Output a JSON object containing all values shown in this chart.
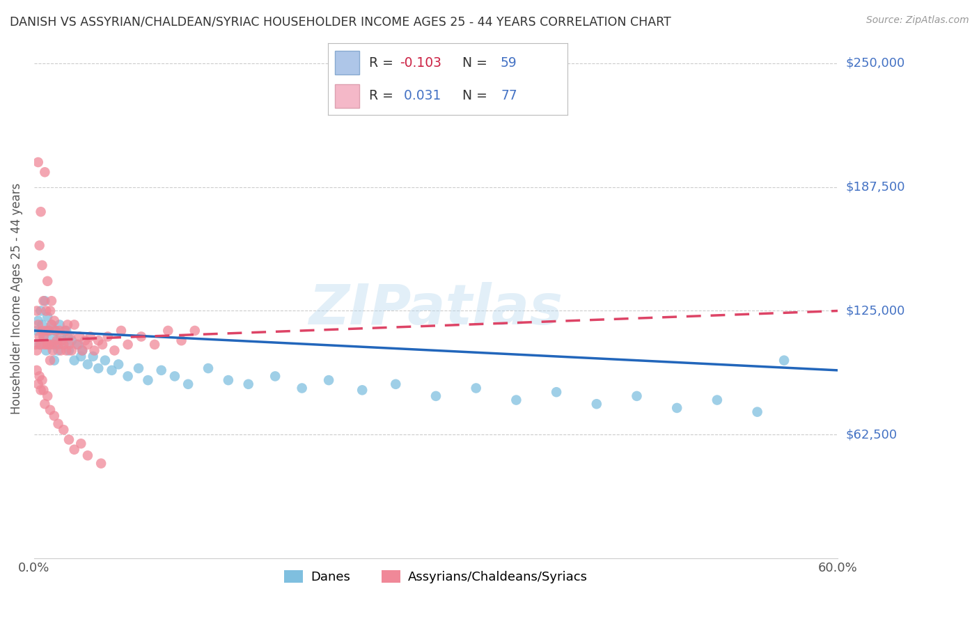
{
  "title": "DANISH VS ASSYRIAN/CHALDEAN/SYRIAC HOUSEHOLDER INCOME AGES 25 - 44 YEARS CORRELATION CHART",
  "source": "Source: ZipAtlas.com",
  "ylabel": "Householder Income Ages 25 - 44 years",
  "x_min": 0.0,
  "x_max": 0.6,
  "y_min": 0,
  "y_max": 262500,
  "y_ticks": [
    62500,
    125000,
    187500,
    250000
  ],
  "y_tick_labels": [
    "$62,500",
    "$125,000",
    "$187,500",
    "$250,000"
  ],
  "x_ticks": [
    0.0,
    0.6
  ],
  "x_tick_labels": [
    "0.0%",
    "60.0%"
  ],
  "legend_name_danes": "Danes",
  "legend_name_assyrians": "Assyrians/Chaldeans/Syriacs",
  "danes_color": "#7fbfdf",
  "assyrians_color": "#f08898",
  "danes_line_color": "#2266bb",
  "assyrians_line_color": "#dd4466",
  "danes_R": -0.103,
  "danes_N": 59,
  "assyrians_R": 0.031,
  "assyrians_N": 77,
  "background_color": "#ffffff",
  "grid_color": "#cccccc",
  "watermark": "ZIPatlas",
  "danes_x": [
    0.002,
    0.003,
    0.004,
    0.005,
    0.006,
    0.007,
    0.008,
    0.009,
    0.01,
    0.011,
    0.012,
    0.013,
    0.014,
    0.015,
    0.016,
    0.017,
    0.018,
    0.019,
    0.02,
    0.022,
    0.024,
    0.026,
    0.028,
    0.03,
    0.033,
    0.036,
    0.04,
    0.044,
    0.048,
    0.053,
    0.058,
    0.063,
    0.07,
    0.078,
    0.085,
    0.095,
    0.105,
    0.115,
    0.13,
    0.145,
    0.16,
    0.18,
    0.2,
    0.22,
    0.245,
    0.27,
    0.3,
    0.33,
    0.36,
    0.39,
    0.42,
    0.45,
    0.48,
    0.51,
    0.54,
    0.56,
    0.015,
    0.025,
    0.035
  ],
  "danes_y": [
    115000,
    120000,
    108000,
    125000,
    118000,
    112000,
    130000,
    105000,
    122000,
    115000,
    108000,
    118000,
    112000,
    100000,
    115000,
    108000,
    105000,
    118000,
    112000,
    108000,
    115000,
    105000,
    110000,
    100000,
    108000,
    105000,
    98000,
    102000,
    96000,
    100000,
    95000,
    98000,
    92000,
    96000,
    90000,
    95000,
    92000,
    88000,
    96000,
    90000,
    88000,
    92000,
    86000,
    90000,
    85000,
    88000,
    82000,
    86000,
    80000,
    84000,
    78000,
    82000,
    76000,
    80000,
    74000,
    100000,
    108000,
    112000,
    102000
  ],
  "assyrians_x": [
    0.001,
    0.002,
    0.002,
    0.003,
    0.003,
    0.004,
    0.004,
    0.005,
    0.005,
    0.006,
    0.006,
    0.007,
    0.007,
    0.008,
    0.008,
    0.009,
    0.009,
    0.01,
    0.01,
    0.011,
    0.011,
    0.012,
    0.012,
    0.013,
    0.013,
    0.014,
    0.014,
    0.015,
    0.016,
    0.017,
    0.018,
    0.019,
    0.02,
    0.021,
    0.022,
    0.023,
    0.024,
    0.025,
    0.026,
    0.027,
    0.028,
    0.03,
    0.032,
    0.034,
    0.036,
    0.038,
    0.04,
    0.042,
    0.045,
    0.048,
    0.051,
    0.055,
    0.06,
    0.065,
    0.07,
    0.08,
    0.09,
    0.1,
    0.11,
    0.12,
    0.002,
    0.003,
    0.004,
    0.005,
    0.006,
    0.007,
    0.008,
    0.01,
    0.012,
    0.015,
    0.018,
    0.022,
    0.026,
    0.03,
    0.035,
    0.04,
    0.05
  ],
  "assyrians_y": [
    108000,
    125000,
    105000,
    118000,
    200000,
    112000,
    158000,
    108000,
    175000,
    115000,
    148000,
    112000,
    130000,
    108000,
    195000,
    115000,
    125000,
    108000,
    140000,
    115000,
    108000,
    125000,
    100000,
    118000,
    130000,
    108000,
    105000,
    120000,
    115000,
    110000,
    108000,
    115000,
    105000,
    110000,
    108000,
    115000,
    105000,
    118000,
    108000,
    112000,
    105000,
    118000,
    108000,
    112000,
    105000,
    110000,
    108000,
    112000,
    105000,
    110000,
    108000,
    112000,
    105000,
    115000,
    108000,
    112000,
    108000,
    115000,
    110000,
    115000,
    95000,
    88000,
    92000,
    85000,
    90000,
    85000,
    78000,
    82000,
    75000,
    72000,
    68000,
    65000,
    60000,
    55000,
    58000,
    52000,
    48000
  ]
}
